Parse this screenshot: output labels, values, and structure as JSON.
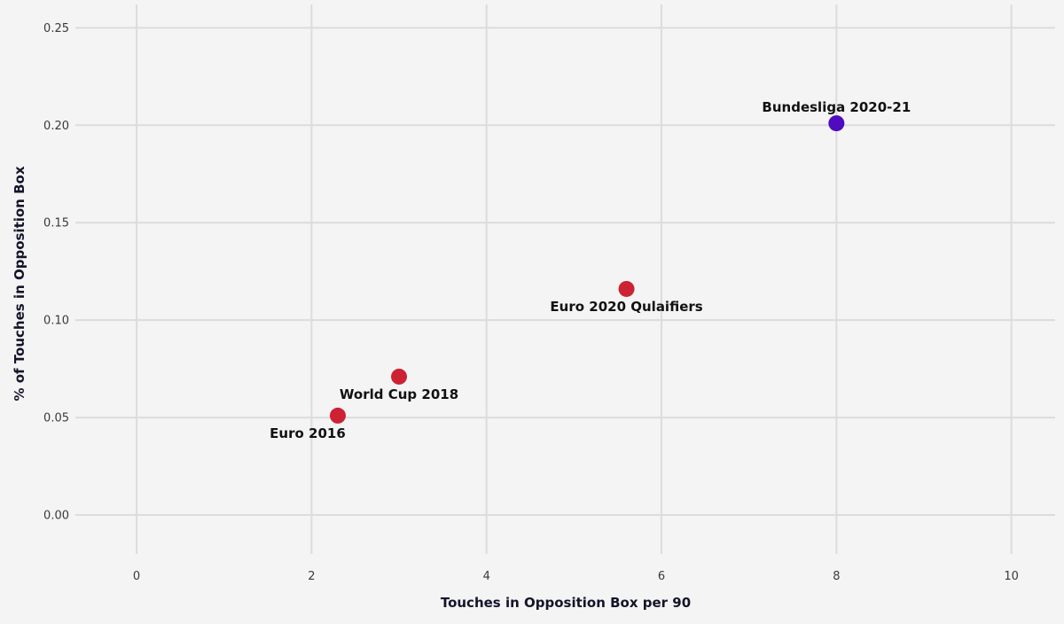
{
  "chart_data": {
    "type": "scatter",
    "title": "",
    "xlabel": "Touches in Opposition Box per 90",
    "ylabel": "% of Touches in Opposition Box",
    "xlim": [
      -0.7,
      10.5
    ],
    "ylim": [
      -0.02,
      0.262
    ],
    "x_ticks": [
      0,
      2,
      4,
      6,
      8,
      10
    ],
    "x_tick_labels": [
      "0",
      "2",
      "4",
      "6",
      "8",
      "10"
    ],
    "y_ticks": [
      0.0,
      0.05,
      0.1,
      0.15,
      0.2,
      0.25
    ],
    "y_tick_labels": [
      "0.00",
      "0.05",
      "0.10",
      "0.15",
      "0.20",
      "0.25"
    ],
    "grid": true,
    "legend": "none",
    "colors": {
      "background": "#f4f4f4",
      "grid": "#dcdcdc",
      "country": "#cc2233",
      "club": "#4e0bbf"
    },
    "points": [
      {
        "label": "Euro 2016",
        "x": 2.3,
        "y": 0.051,
        "color": "#cc2233",
        "label_position": "below-left"
      },
      {
        "label": "World Cup 2018",
        "x": 3.0,
        "y": 0.071,
        "color": "#cc2233",
        "label_position": "below"
      },
      {
        "label": "Euro 2020 Qulaifiers",
        "x": 5.6,
        "y": 0.116,
        "color": "#cc2233",
        "label_position": "below"
      },
      {
        "label": "Bundesliga 2020-21",
        "x": 8.0,
        "y": 0.201,
        "color": "#4e0bbf",
        "label_position": "above"
      }
    ]
  }
}
